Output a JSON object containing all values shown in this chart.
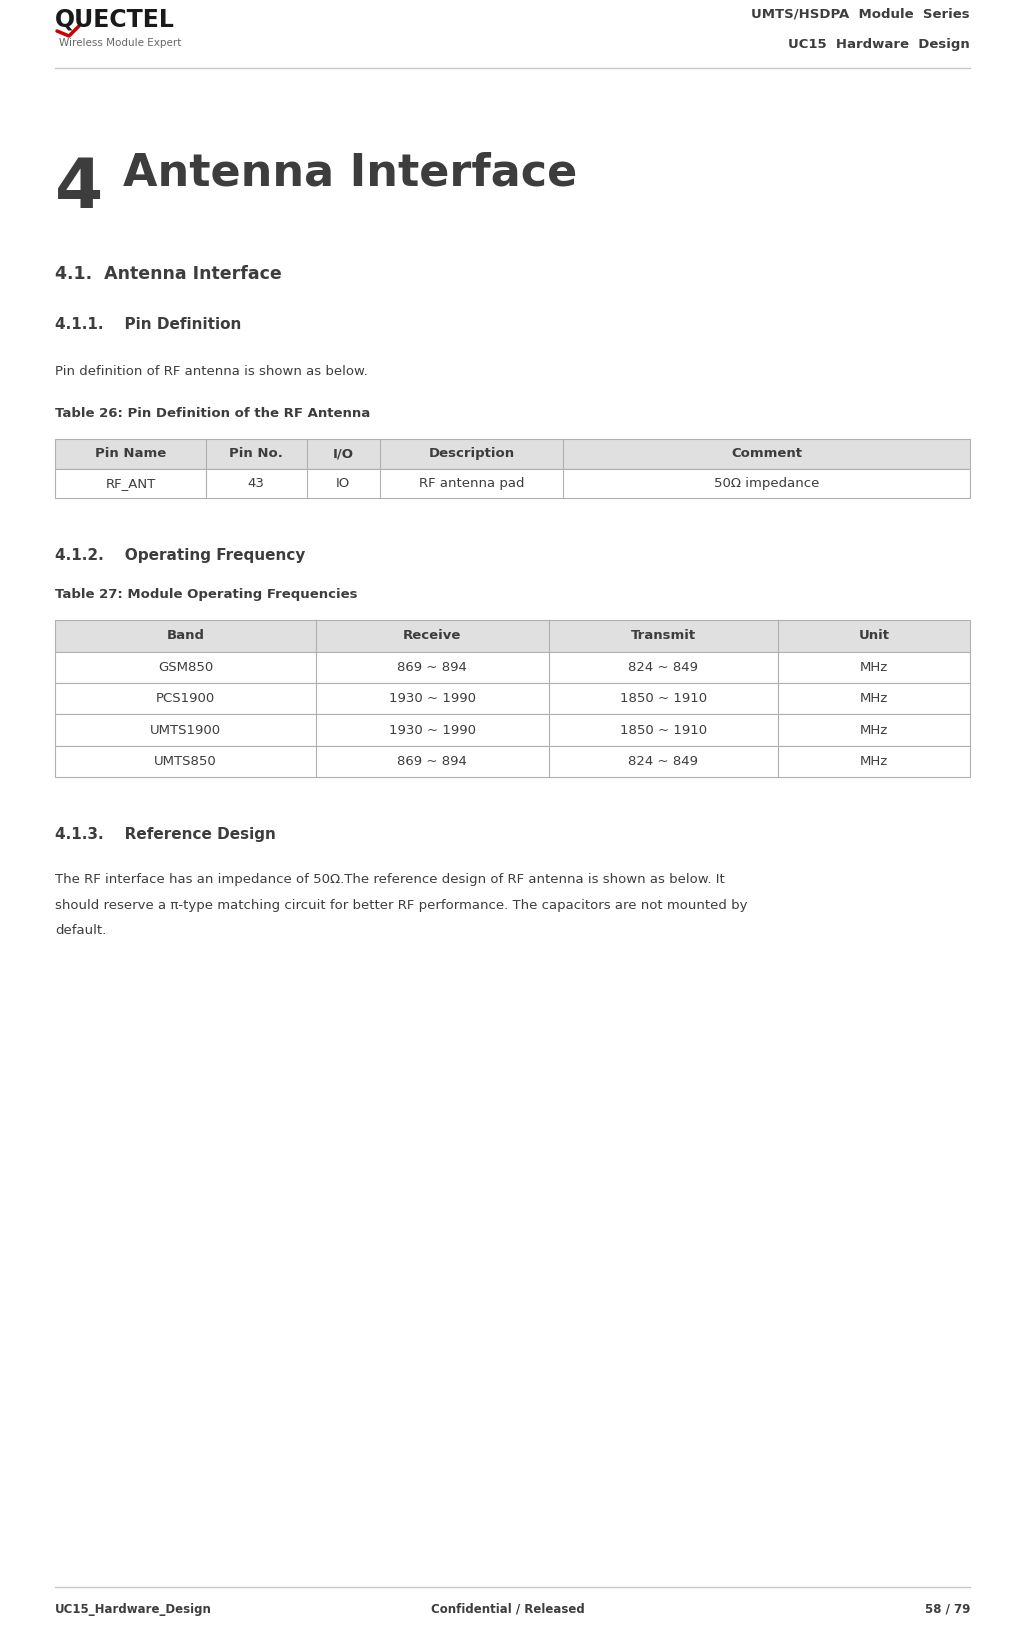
{
  "page_width": 10.15,
  "page_height": 16.39,
  "dpi": 100,
  "bg_color": "#ffffff",
  "header_line_color": "#c8c8c8",
  "footer_line_color": "#c8c8c8",
  "header_title_line1": "UMTS/HSDPA  Module  Series",
  "header_title_line2": "UC15  Hardware  Design",
  "header_logo_text": "QUECTEL",
  "header_logo_sub": "Wireless Module Expert",
  "footer_left": "UC15_Hardware_Design",
  "footer_center": "Confidential / Released",
  "footer_right": "58 / 79",
  "chapter_number": "4",
  "chapter_title": "Antenna Interface",
  "section_41": "4.1.  Antenna Interface",
  "section_411": "4.1.1.    Pin Definition",
  "section_411_text": "Pin definition of RF antenna is shown as below.",
  "table26_title": "Table 26: Pin Definition of the RF Antenna",
  "table26_header": [
    "Pin Name",
    "Pin No.",
    "I/O",
    "Description",
    "Comment"
  ],
  "table26_row": [
    "RF_ANT",
    "43",
    "IO",
    "RF antenna pad",
    "50Ω impedance"
  ],
  "section_412": "4.1.2.    Operating Frequency",
  "table27_title": "Table 27: Module Operating Frequencies",
  "table27_header": [
    "Band",
    "Receive",
    "Transmit",
    "Unit"
  ],
  "table27_rows": [
    [
      "GSM850",
      "869 ~ 894",
      "824 ~ 849",
      "MHz"
    ],
    [
      "PCS1900",
      "1930 ~ 1990",
      "1850 ~ 1910",
      "MHz"
    ],
    [
      "UMTS1900",
      "1930 ~ 1990",
      "1850 ~ 1910",
      "MHz"
    ],
    [
      "UMTS850",
      "869 ~ 894",
      "824 ~ 849",
      "MHz"
    ]
  ],
  "section_413": "4.1.3.    Reference Design",
  "section_413_text": "The RF interface has an impedance of 50Ω.The reference design of RF antenna is shown as below. It should reserve a π-type matching circuit for better RF performance. The capacitors are not mounted by default.",
  "table_header_bg": "#e0e0e0",
  "table_border_color": "#b0b0b0",
  "text_color": "#3d3d3d",
  "chapter_color": "#3d3d3d"
}
